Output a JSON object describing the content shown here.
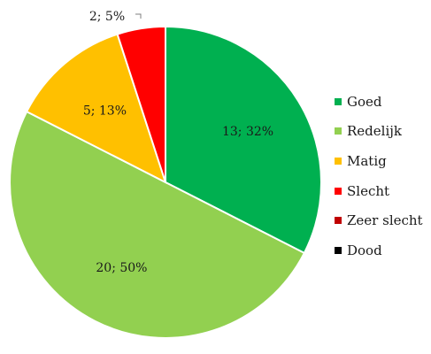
{
  "chart_data": {
    "type": "pie",
    "title": "",
    "start_angle_deg": 0,
    "direction": "clockwise",
    "slices": [
      {
        "name": "Goed",
        "value": 13,
        "percent": 32,
        "label": "13; 32%",
        "color": "#00B050"
      },
      {
        "name": "Redelijk",
        "value": 20,
        "percent": 50,
        "label": "20; 50%",
        "color": "#92D050"
      },
      {
        "name": "Matig",
        "value": 5,
        "percent": 13,
        "label": "5; 13%",
        "color": "#FFC000"
      },
      {
        "name": "Slecht",
        "value": 2,
        "percent": 5,
        "label": "2; 5%",
        "color": "#FF0000"
      },
      {
        "name": "Zeer slecht",
        "value": 0,
        "percent": 0,
        "label": "",
        "color": "#C00000"
      },
      {
        "name": "Dood",
        "value": 0,
        "percent": 0,
        "label": "",
        "color": "#000000"
      }
    ],
    "legend": {
      "position": "right",
      "entries": [
        "Goed",
        "Redelijk",
        "Matig",
        "Slecht",
        "Zeer slecht",
        "Dood"
      ]
    }
  }
}
